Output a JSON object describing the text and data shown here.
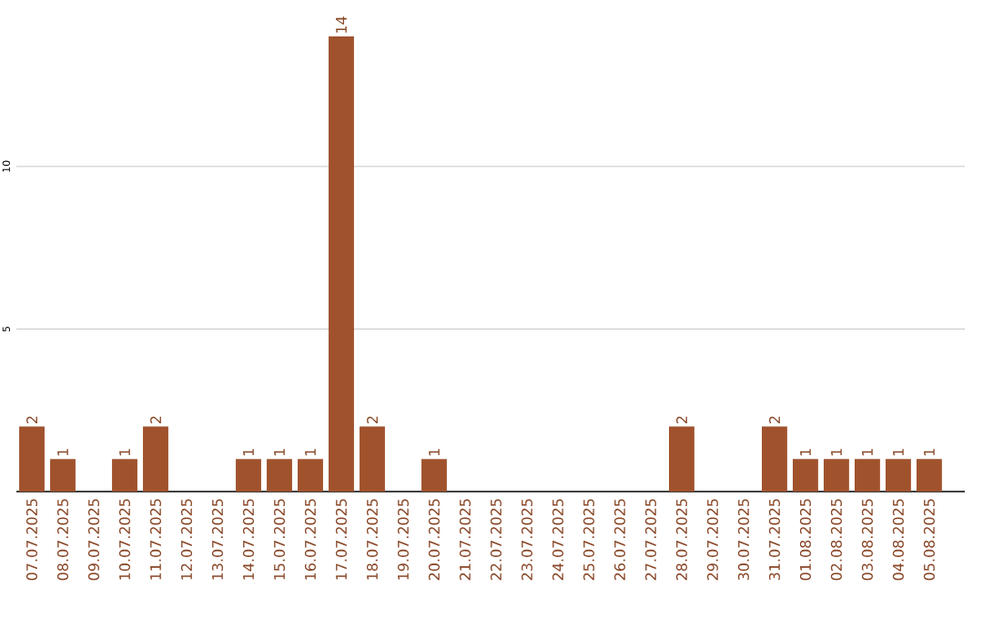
{
  "chart_data": {
    "type": "bar",
    "categories": [
      "07.07.2025",
      "08.07.2025",
      "09.07.2025",
      "10.07.2025",
      "11.07.2025",
      "12.07.2025",
      "13.07.2025",
      "14.07.2025",
      "15.07.2025",
      "16.07.2025",
      "17.07.2025",
      "18.07.2025",
      "19.07.2025",
      "20.07.2025",
      "21.07.2025",
      "22.07.2025",
      "23.07.2025",
      "24.07.2025",
      "25.07.2025",
      "26.07.2025",
      "27.07.2025",
      "28.07.2025",
      "29.07.2025",
      "30.07.2025",
      "31.07.2025",
      "01.08.2025",
      "02.08.2025",
      "03.08.2025",
      "04.08.2025",
      "05.08.2025"
    ],
    "values": [
      2,
      1,
      0,
      1,
      2,
      0,
      0,
      1,
      1,
      1,
      14,
      2,
      0,
      1,
      0,
      0,
      0,
      0,
      0,
      0,
      0,
      2,
      0,
      0,
      2,
      1,
      1,
      1,
      1,
      1
    ],
    "value_labels": [
      "2",
      "1",
      null,
      "1",
      "2",
      null,
      null,
      "1",
      "1",
      "1",
      "14",
      "2",
      null,
      "1",
      null,
      null,
      null,
      null,
      null,
      null,
      null,
      "2",
      null,
      null,
      "2",
      "1",
      "1",
      "1",
      "1",
      "1"
    ],
    "color": "#a0522d",
    "ylim": [
      0,
      14
    ],
    "yticks": [
      5,
      10
    ],
    "grid": "y"
  }
}
